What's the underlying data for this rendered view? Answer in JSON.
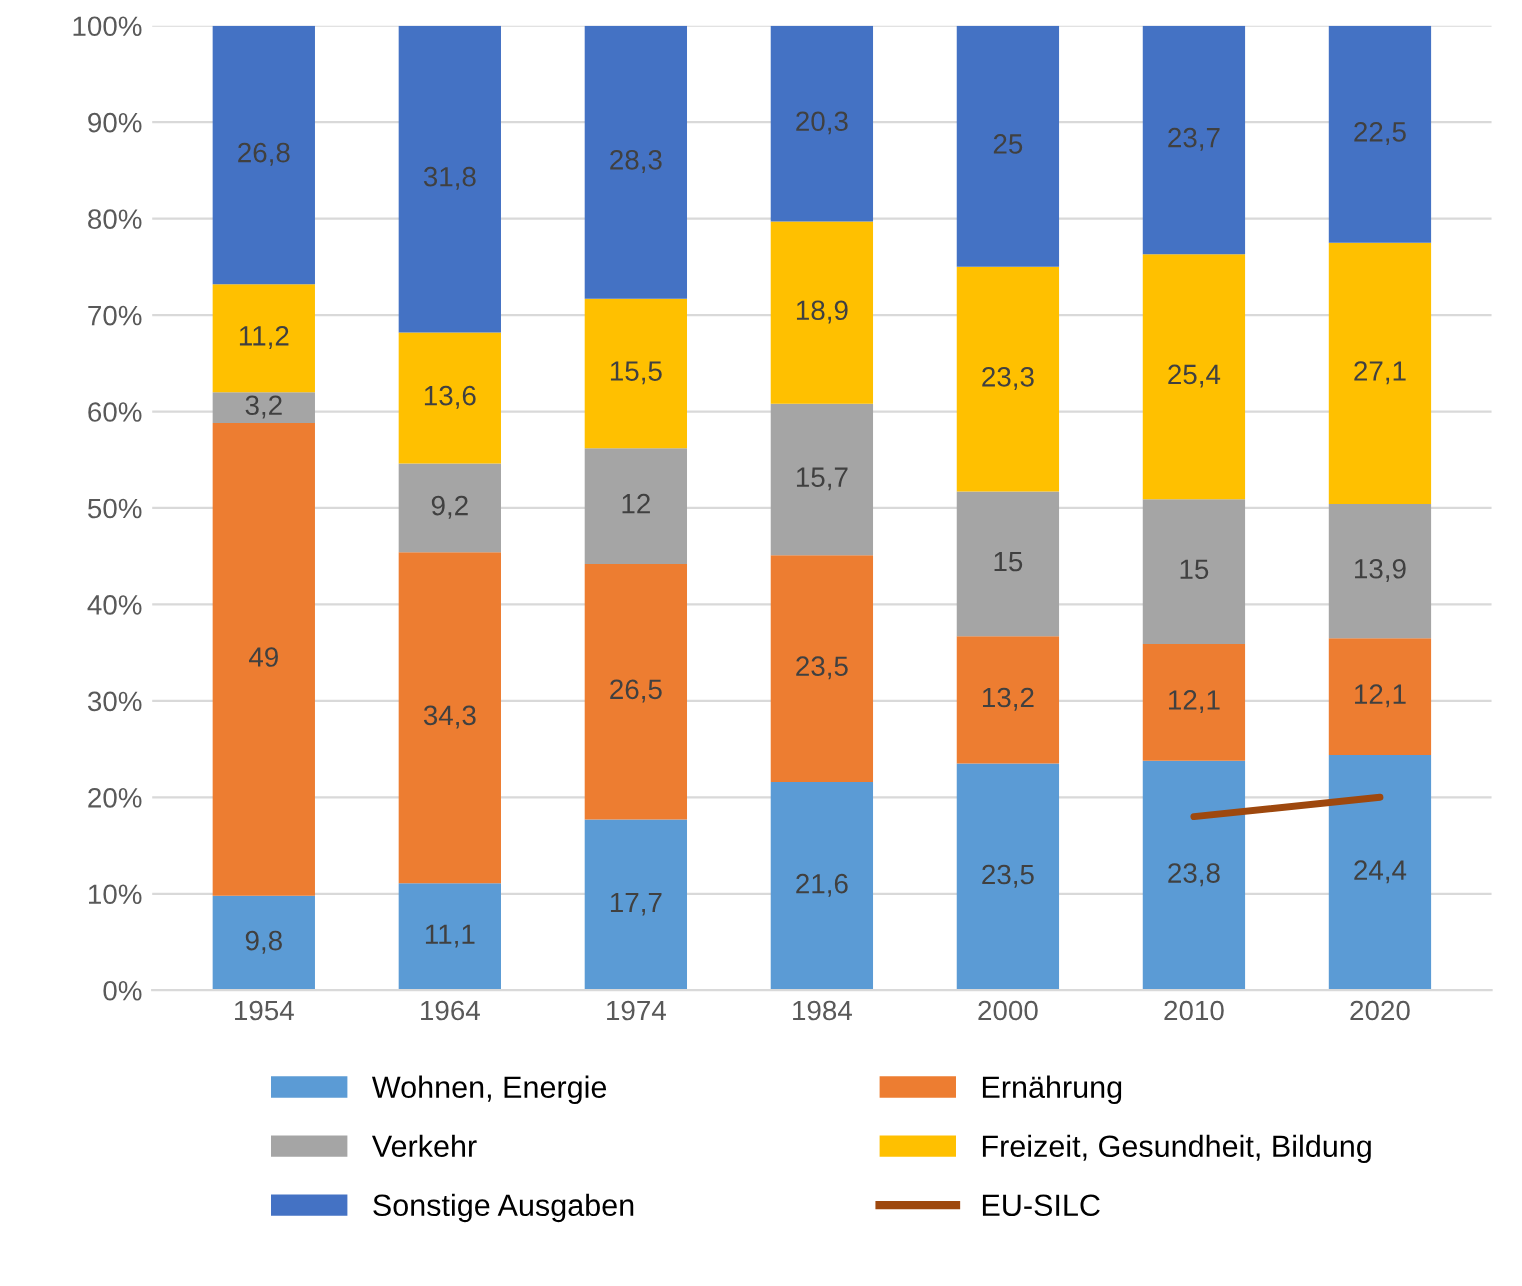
{
  "chart_data": {
    "type": "bar",
    "stacked": true,
    "categories": [
      "1954",
      "1964",
      "1974",
      "1984",
      "2000",
      "2010",
      "2020"
    ],
    "series": [
      {
        "name": "Wohnen, Energie",
        "color": "#5b9bd5",
        "values": [
          9.8,
          11.1,
          17.7,
          21.6,
          23.5,
          23.8,
          24.4
        ],
        "value_labels": [
          "9,8",
          "11,1",
          "17,7",
          "21,6",
          "23,5",
          "23,8",
          "24,4"
        ]
      },
      {
        "name": "Ernährung",
        "color": "#ed7d31",
        "values": [
          49,
          34.3,
          26.5,
          23.5,
          13.2,
          12.1,
          12.1
        ],
        "value_labels": [
          "49",
          "34,3",
          "26,5",
          "23,5",
          "13,2",
          "12,1",
          "12,1"
        ]
      },
      {
        "name": "Verkehr",
        "color": "#a5a5a5",
        "values": [
          3.2,
          9.2,
          12,
          15.7,
          15,
          15,
          13.9
        ],
        "value_labels": [
          "3,2",
          "9,2",
          "12",
          "15,7",
          "15",
          "15",
          "13,9"
        ]
      },
      {
        "name": "Freizeit, Gesundheit, Bildung",
        "color": "#ffc000",
        "values": [
          11.2,
          13.6,
          15.5,
          18.9,
          23.3,
          25.4,
          27.1
        ],
        "value_labels": [
          "11,2",
          "13,6",
          "15,5",
          "18,9",
          "23,3",
          "25,4",
          "27,1"
        ]
      },
      {
        "name": "Sonstige Ausgaben",
        "color": "#4472c4",
        "values": [
          26.8,
          31.8,
          28.3,
          20.3,
          25,
          23.7,
          22.5
        ],
        "value_labels": [
          "26,8",
          "31,8",
          "28,3",
          "20,3",
          "25",
          "23,7",
          "22,5"
        ]
      },
      {
        "name": "EU-SILC",
        "type": "line",
        "color": "#9e480e",
        "values": [
          null,
          null,
          null,
          null,
          null,
          18,
          20
        ]
      }
    ],
    "ylim": [
      0,
      100
    ],
    "yticks": [
      {
        "value": 0,
        "label": "0%"
      },
      {
        "value": 10,
        "label": "10%"
      },
      {
        "value": 20,
        "label": "20%"
      },
      {
        "value": 30,
        "label": "30%"
      },
      {
        "value": 40,
        "label": "40%"
      },
      {
        "value": 50,
        "label": "50%"
      },
      {
        "value": 60,
        "label": "60%"
      },
      {
        "value": 70,
        "label": "70%"
      },
      {
        "value": 80,
        "label": "80%"
      },
      {
        "value": 90,
        "label": "90%"
      },
      {
        "value": 100,
        "label": "100%"
      }
    ],
    "grid": "y",
    "legend": "bottom"
  }
}
